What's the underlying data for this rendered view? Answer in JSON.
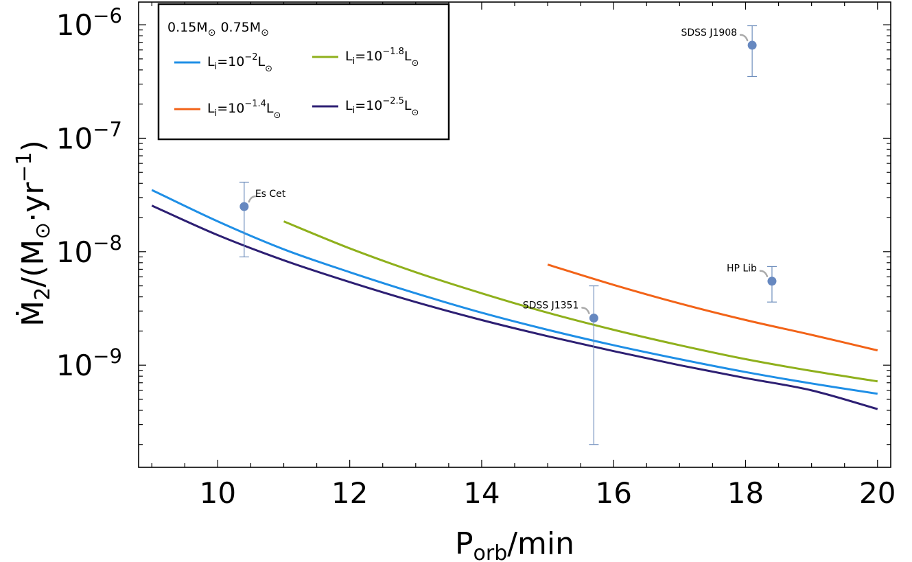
{
  "chart_data": {
    "type": "line",
    "xlabel_main": "P",
    "xlabel_sub": "orb",
    "xlabel_rest": "/min",
    "ylabel_parts": {
      "mdot": "Ṁ",
      "sub2": "2",
      "open": "/(M",
      "sun": "⊙",
      "mid": "·yr",
      "exp": "−1",
      "close": ")"
    },
    "xlim": [
      8.8,
      20.2
    ],
    "ylim_log10": [
      -9.9,
      -5.8
    ],
    "y_scale": "log",
    "x_ticks": [
      10,
      12,
      14,
      16,
      18,
      20
    ],
    "x_tick_labels": [
      "10",
      "12",
      "14",
      "16",
      "18",
      "20"
    ],
    "y_ticks_exp": [
      -9,
      -8,
      -7,
      -6
    ],
    "y_tick_base": "10",
    "y_tick_exps": [
      "−9",
      "−8",
      "−7",
      "−6"
    ],
    "legend": {
      "header_a": "0.15M",
      "header_b": "0.75M",
      "sun": "⊙",
      "position": "top-left",
      "entries": [
        {
          "prefix": "L",
          "sub": "i",
          "mid": "=10",
          "exp": "−2",
          "suffix": "L",
          "sun": "⊙",
          "color": "#1f8fe6"
        },
        {
          "prefix": "L",
          "sub": "i",
          "mid": "=10",
          "exp": "−1.8",
          "suffix": "L",
          "sun": "⊙",
          "color": "#8fb01c"
        },
        {
          "prefix": "L",
          "sub": "i",
          "mid": "=10",
          "exp": "−1.4",
          "suffix": "L",
          "sun": "⊙",
          "color": "#f26318"
        },
        {
          "prefix": "L",
          "sub": "i",
          "mid": "=10",
          "exp": "−2.5",
          "suffix": "L",
          "sun": "⊙",
          "color": "#2d1f73"
        }
      ]
    },
    "series": [
      {
        "color": "#1f8fe6",
        "x": [
          9,
          10,
          11,
          12,
          13,
          14,
          15,
          16,
          17,
          18,
          19,
          20
        ],
        "y": [
          3.5e-08,
          1.85e-08,
          1.05e-08,
          6.6e-09,
          4.3e-09,
          2.9e-09,
          2.05e-09,
          1.5e-09,
          1.13e-09,
          8.7e-10,
          6.9e-10,
          5.6e-10
        ]
      },
      {
        "color": "#8fb01c",
        "x": [
          11,
          12,
          13,
          14,
          15,
          16,
          17,
          18,
          19,
          20
        ],
        "y": [
          1.85e-08,
          1.07e-08,
          6.6e-09,
          4.3e-09,
          2.9e-09,
          2.05e-09,
          1.5e-09,
          1.13e-09,
          8.9e-10,
          7.2e-10
        ]
      },
      {
        "color": "#f26318",
        "x": [
          15,
          16,
          17,
          18,
          19,
          20
        ],
        "y": [
          7.7e-09,
          5.1e-09,
          3.5e-09,
          2.5e-09,
          1.85e-09,
          1.35e-09
        ]
      },
      {
        "color": "#2d1f73",
        "x": [
          9,
          10,
          11,
          12,
          13,
          14,
          15,
          16,
          17,
          18,
          19,
          20
        ],
        "y": [
          2.55e-08,
          1.4e-08,
          8.4e-09,
          5.4e-09,
          3.6e-09,
          2.5e-09,
          1.8e-09,
          1.33e-09,
          1e-09,
          7.7e-10,
          6e-10,
          4.1e-10
        ]
      }
    ],
    "points": [
      {
        "name": "Es Cet",
        "x": 10.4,
        "y": 2.5e-08,
        "ylo": 9e-09,
        "yhi": 4.1e-08
      },
      {
        "name": "SDSS J1351",
        "x": 15.7,
        "y": 2.6e-09,
        "ylo": 2e-10,
        "yhi": 5e-09
      },
      {
        "name": "HP Lib",
        "x": 18.4,
        "y": 5.5e-09,
        "ylo": 3.6e-09,
        "yhi": 7.4e-09
      },
      {
        "name": "SDSS J1908",
        "x": 18.1,
        "y": 6.6e-07,
        "ylo": 3.5e-07,
        "yhi": 9.8e-07
      }
    ]
  }
}
